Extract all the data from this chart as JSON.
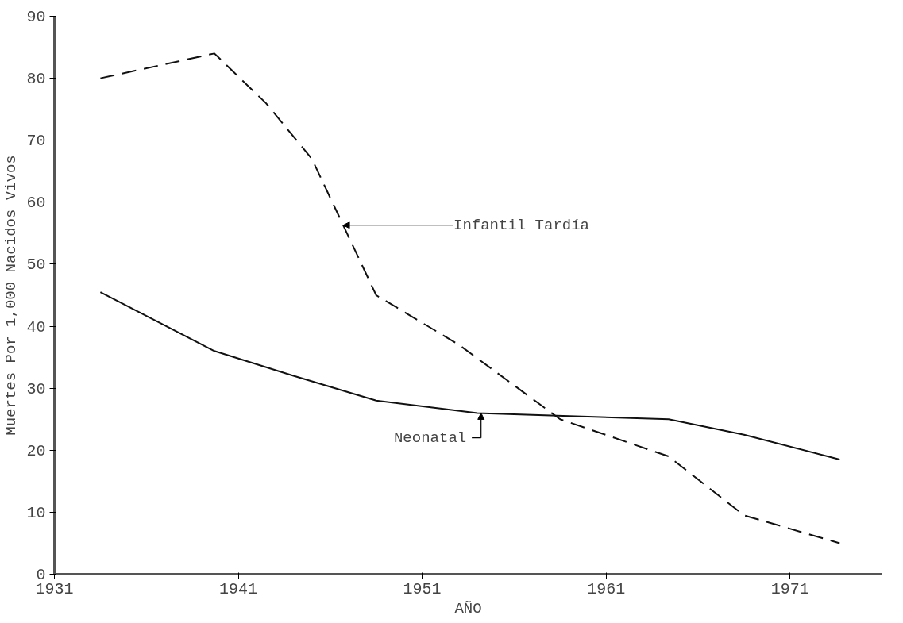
{
  "chart_data": {
    "type": "line",
    "xlabel": "AÑO",
    "ylabel": "Muertes Por 1,000 Nacidos Vivos",
    "xlim": [
      1931,
      1976
    ],
    "ylim": [
      0,
      90
    ],
    "xticks": [
      1931,
      1941,
      1951,
      1961,
      1971
    ],
    "yticks": [
      0,
      10,
      20,
      30,
      40,
      50,
      60,
      70,
      80,
      90
    ],
    "grid": false,
    "series": [
      {
        "color": "#111111",
        "line_style": "dashed",
        "x": [
          1933.5,
          1939.7,
          1942.5,
          1945,
          1948.5,
          1953,
          1958.5,
          1964.4,
          1968.5,
          1973.7
        ],
        "values": [
          80,
          84,
          76,
          67,
          45,
          37,
          25,
          19,
          9.5,
          5
        ]
      },
      {
        "color": "#111111",
        "line_style": "solid",
        "x": [
          1933.5,
          1939.7,
          1944,
          1948.5,
          1954,
          1959,
          1964.4,
          1968.5,
          1973.7
        ],
        "values": [
          45.5,
          36,
          32,
          28,
          26,
          25.5,
          25,
          22.5,
          18.5
        ]
      }
    ],
    "annotations": [
      {
        "text": "Infantil Tardía",
        "x": 1946.7,
        "y": 56.3
      },
      {
        "text": "Neonatal",
        "x": 1954.2,
        "y": 26
      }
    ]
  }
}
